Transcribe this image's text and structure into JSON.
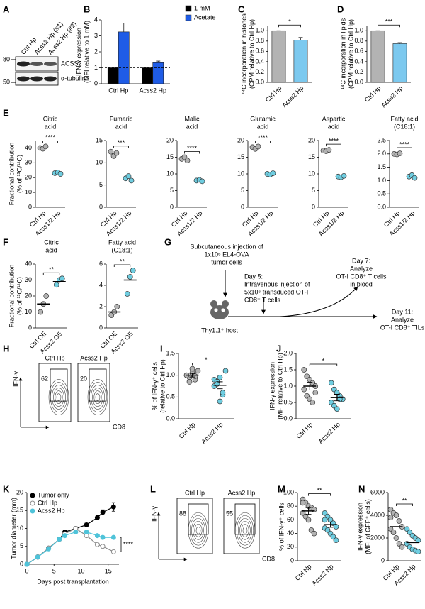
{
  "figure": {
    "A": {
      "panel": "A",
      "lanes": [
        "Ctrl Hp",
        "Acss2 Hp (#1)",
        "Acss2 Hp (#2)"
      ],
      "markers": [
        "80",
        "50"
      ],
      "bands": [
        "ACSS2",
        "α-tubulin"
      ]
    },
    "G": {
      "panel": "G",
      "injection": [
        "Subcutaneous injection of",
        "1x10⁶ EL4-OVA",
        "tumor cells"
      ],
      "day5": [
        "Day 5:",
        "Intravenous injection of",
        "5x10⁶ transduced OT-I",
        "CD8⁺ T cells"
      ],
      "day7": [
        "Day 7:",
        "Analyze",
        "OT-I CD8⁺ T cells",
        "in blood"
      ],
      "day11": [
        "Day 11:",
        "Analyze",
        "OT-I CD8⁺ TILs"
      ],
      "host": "Thy1.1⁺ host"
    },
    "H": {
      "panel": "H",
      "y_axis": "IFN-γ",
      "x_axis": "CD8",
      "plots": [
        {
          "title": "Ctrl Hp",
          "gate": 62
        },
        {
          "title": "Acss2 Hp",
          "gate": 20
        }
      ]
    },
    "L": {
      "panel": "L",
      "y_axis": "IFN-γ",
      "x_axis": "CD8",
      "plots": [
        {
          "title": "Ctrl Hp",
          "gate": 88
        },
        {
          "title": "Acss2 Hp",
          "gate": 55
        }
      ]
    }
  },
  "chart_data": [
    {
      "panel": "B",
      "type": "bar",
      "ylabel": [
        "IFN-γ expression",
        "(MFI relative to 1 mM)"
      ],
      "categories": [
        "Ctrl Hp",
        "Acss2 Hp"
      ],
      "series": [
        {
          "name": "1 mM",
          "color": "#000000",
          "values": [
            1,
            1
          ]
        },
        {
          "name": "Acetate",
          "color": "#1f5ce6",
          "values": [
            3.25,
            1.32
          ],
          "errors": [
            0.55,
            0.1
          ]
        }
      ],
      "ylim": [
        0,
        4
      ],
      "yticks": [
        0,
        1,
        2,
        3,
        4
      ],
      "reference_line": 1,
      "legend": "top-right"
    },
    {
      "panel": "C",
      "type": "bar",
      "ylabel": [
        "¹⁴C incorporation in histones",
        "(CPM relative to Ctrl Hp)"
      ],
      "categories": [
        "Ctrl Hp",
        "Acss2 Hp"
      ],
      "values": [
        1,
        0.82
      ],
      "errors": [
        0,
        0.05
      ],
      "colors": [
        "#b3b3b3",
        "#7cc9ef"
      ],
      "ylim": [
        0,
        1.1
      ],
      "yticks": [
        {
          "value": 0,
          "label": "0.0"
        },
        0.2,
        0.4,
        0.6,
        0.8,
        {
          "value": 1,
          "label": "1.0"
        }
      ],
      "significance": "*"
    },
    {
      "panel": "D",
      "type": "bar",
      "ylabel": [
        "¹⁴C incorporation in lipids",
        "(CPM relative to Ctrl Hp)"
      ],
      "categories": [
        "Ctrl Hp",
        "Acss2 Hp"
      ],
      "values": [
        1,
        0.75
      ],
      "errors": [
        0,
        0.02
      ],
      "colors": [
        "#b3b3b3",
        "#7cc9ef"
      ],
      "ylim": [
        0,
        1.1
      ],
      "yticks": [
        {
          "value": 0,
          "label": "0.0"
        },
        0.2,
        0.4,
        0.6,
        0.8,
        {
          "value": 1,
          "label": "1.0"
        }
      ],
      "significance": "***"
    },
    {
      "panel": "E",
      "type": "strip",
      "title": [
        "Citric",
        "acid"
      ],
      "ylabel": [
        "Fractional contribution",
        "(% of ¹³C/¹²C)"
      ],
      "categories": [
        "Ctrl Hp",
        "Acss1/2 Hp"
      ],
      "points": [
        [
          40,
          39.5,
          41
        ],
        [
          23,
          23.5,
          22.5
        ]
      ],
      "colors": [
        "#b3b3b3",
        "#6fcde0"
      ],
      "ylim": [
        0,
        45
      ],
      "yticks": [
        0,
        10,
        20,
        30,
        40
      ],
      "significance": "****"
    },
    {
      "type": "strip",
      "title": [
        "Fumaric",
        "acid"
      ],
      "categories": [
        "Ctrl Hp",
        "Acss1/2 Hp"
      ],
      "points": [
        [
          12.5,
          11.5,
          12.2
        ],
        [
          6.5,
          7,
          6
        ]
      ],
      "colors": [
        "#b3b3b3",
        "#6fcde0"
      ],
      "ylim": [
        0,
        15
      ],
      "yticks": [
        0,
        5,
        10,
        15
      ],
      "significance": "***"
    },
    {
      "type": "strip",
      "title": [
        "Malic",
        "acid"
      ],
      "categories": [
        "Ctrl Hp",
        "Acss1/2 Hp"
      ],
      "points": [
        [
          14.5,
          15,
          14
        ],
        [
          8,
          8.2,
          7.8
        ]
      ],
      "colors": [
        "#b3b3b3",
        "#6fcde0"
      ],
      "ylim": [
        0,
        20
      ],
      "yticks": [
        0,
        5,
        10,
        15,
        20
      ],
      "significance": "****"
    },
    {
      "type": "strip",
      "title": [
        "Glutamic",
        "acid"
      ],
      "categories": [
        "Ctrl Hp",
        "Acss1/2 Hp"
      ],
      "points": [
        [
          18,
          17.5,
          18.2
        ],
        [
          10,
          9.8,
          10.2
        ]
      ],
      "colors": [
        "#b3b3b3",
        "#6fcde0"
      ],
      "ylim": [
        0,
        20
      ],
      "yticks": [
        0,
        5,
        10,
        15,
        20
      ],
      "significance": "****"
    },
    {
      "type": "strip",
      "title": [
        "Aspartic",
        "acid"
      ],
      "categories": [
        "Ctrl Hp",
        "Acss1/2 Hp"
      ],
      "points": [
        [
          17,
          16.8,
          17.2
        ],
        [
          9.2,
          9,
          9.4
        ]
      ],
      "colors": [
        "#b3b3b3",
        "#6fcde0"
      ],
      "ylim": [
        0,
        20
      ],
      "yticks": [
        0,
        5,
        10,
        15,
        20
      ],
      "significance": "****"
    },
    {
      "type": "strip",
      "title": [
        "Fatty acid",
        "(C18:1)"
      ],
      "categories": [
        "Ctrl Hp",
        "Acss1/2 Hp"
      ],
      "points": [
        [
          2,
          1.98,
          2.02
        ],
        [
          1.15,
          1.2,
          1.1
        ]
      ],
      "colors": [
        "#b3b3b3",
        "#6fcde0"
      ],
      "ylim": [
        0,
        2.5
      ],
      "yticks": [
        {
          "value": 0,
          "label": "0.0"
        },
        0.5,
        {
          "value": 1,
          "label": "1.0"
        },
        1.5,
        {
          "value": 2,
          "label": "2.0"
        },
        2.5
      ],
      "significance": "****"
    },
    {
      "panel": "F",
      "type": "strip",
      "title": [
        "Citric",
        "acid"
      ],
      "ylabel": [
        "Fractional contribution",
        "(% of ¹³C/¹²C)"
      ],
      "categories": [
        "Ctrl OE",
        "Acss2 OE"
      ],
      "points": [
        [
          10,
          15,
          20
        ],
        [
          27,
          30,
          31
        ]
      ],
      "means": [
        15,
        29
      ],
      "colors": [
        "#b3b3b3",
        "#6fcde0"
      ],
      "ylim": [
        0,
        40
      ],
      "yticks": [
        0,
        10,
        20,
        30,
        40
      ],
      "significance": "**"
    },
    {
      "type": "strip",
      "title": [
        "Fatty acid",
        "(C18:1)"
      ],
      "categories": [
        "Ctrl OE",
        "Acss2 OE"
      ],
      "points": [
        [
          1.2,
          1.5,
          2
        ],
        [
          3.2,
          4.8,
          5.4
        ]
      ],
      "means": [
        1.5,
        4.5
      ],
      "colors": [
        "#b3b3b3",
        "#6fcde0"
      ],
      "ylim": [
        0,
        6
      ],
      "yticks": [
        0,
        2,
        4,
        6
      ],
      "significance": "**"
    },
    {
      "panel": "I",
      "type": "strip",
      "ylabel": [
        "% of IFN-γ⁺ cells",
        "(relative to Ctrl Hp)"
      ],
      "categories": [
        "Ctrl Hp",
        "Acss2 Hp"
      ],
      "points": [
        [
          1,
          0.95,
          1.05,
          0.9,
          1.1,
          1,
          0.85,
          1.15,
          0.98
        ],
        [
          0.9,
          0.85,
          0.4,
          0.55,
          1.1,
          0.75,
          0.8,
          0.95,
          0.6
        ]
      ],
      "means": [
        1,
        0.77
      ],
      "errors": [
        0.04,
        0.08
      ],
      "colors": [
        "#b3b3b3",
        "#6fcde0"
      ],
      "ylim": [
        0,
        1.5
      ],
      "yticks": [
        {
          "value": 0,
          "label": "0.0"
        },
        0.5,
        {
          "value": 1,
          "label": "1.0"
        },
        1.5
      ],
      "significance": "*"
    },
    {
      "panel": "J",
      "type": "strip",
      "ylabel": [
        "IFN-γ expression",
        "(MFI relative to Ctrl Hp)"
      ],
      "categories": [
        "Ctrl Hp",
        "Acss2 Hp"
      ],
      "points": [
        [
          1.5,
          1.3,
          1.2,
          1.1,
          1,
          0.9,
          0.7,
          0.6,
          0.5,
          0.8
        ],
        [
          1.1,
          0.9,
          0.8,
          0.7,
          0.6,
          0.5,
          0.4,
          0.3,
          0.6
        ]
      ],
      "means": [
        1,
        0.65
      ],
      "errors": [
        0.12,
        0.1
      ],
      "colors": [
        "#b3b3b3",
        "#6fcde0"
      ],
      "ylim": [
        0,
        2
      ],
      "yticks": [
        {
          "value": 0,
          "label": "0.0"
        },
        0.5,
        {
          "value": 1,
          "label": "1.0"
        },
        1.5,
        {
          "value": 2,
          "label": "2.0"
        }
      ],
      "significance": "*"
    },
    {
      "panel": "K",
      "type": "line",
      "xlabel": "Days post transplantation",
      "ylabel": "Tumor diameter (mm)",
      "x": [
        0,
        2,
        4,
        6,
        7,
        9,
        11,
        13,
        14,
        16
      ],
      "series": [
        {
          "name": "Tumor only",
          "color": "#000000",
          "values": [
            0,
            2,
            4.5,
            7,
            9,
            10,
            11,
            13,
            14.5,
            16
          ],
          "errors": [
            0,
            0.1,
            0.3,
            0.4,
            0.5,
            0.5,
            0.5,
            0.6,
            0.7,
            1.2
          ]
        },
        {
          "name": "Ctrl Hp",
          "color": "#8c8c8c",
          "fill": "#ffffff",
          "values": [
            0,
            2.1,
            4.5,
            7,
            8.5,
            10,
            8,
            5.5,
            5,
            3.5
          ]
        },
        {
          "name": "Acss2 Hp",
          "color": "#4fc3d9",
          "values": [
            0,
            2,
            4.3,
            7,
            8,
            9,
            9,
            8,
            7.5,
            7.5
          ]
        }
      ],
      "xlim": [
        0,
        17
      ],
      "xticks": [
        0,
        5,
        10,
        15
      ],
      "ylim": [
        0,
        20
      ],
      "yticks": [
        0,
        5,
        10,
        15,
        20
      ],
      "legend": "top-left",
      "significance": "****"
    },
    {
      "panel": "M",
      "type": "strip",
      "ylabel": "% of IFN-γ⁺ cells",
      "categories": [
        "Ctrl Hp",
        "Acss2 Hp"
      ],
      "points": [
        [
          90,
          85,
          80,
          78,
          75,
          70,
          65,
          60,
          45,
          40,
          85
        ],
        [
          70,
          65,
          60,
          55,
          50,
          48,
          45,
          40,
          35,
          30,
          60
        ]
      ],
      "means": [
        73,
        53
      ],
      "errors": [
        5,
        4
      ],
      "colors": [
        "#b3b3b3",
        "#6fcde0"
      ],
      "ylim": [
        0,
        100
      ],
      "yticks": [
        0,
        20,
        40,
        60,
        80,
        100
      ],
      "significance": "**"
    },
    {
      "panel": "N",
      "type": "strip",
      "ylabel": [
        "IFN-γ expression",
        "(MFI of GFP⁺ cells)"
      ],
      "categories": [
        "Ctrl Hp",
        "Acss2 Hp"
      ],
      "points": [
        [
          4500,
          4200,
          4000,
          3500,
          3000,
          2800,
          2500,
          2000,
          1500,
          1200,
          3800
        ],
        [
          2800,
          2500,
          2200,
          2000,
          1800,
          1500,
          1200,
          1000,
          900,
          800
        ]
      ],
      "means": [
        3000,
        1600
      ],
      "colors": [
        "#b3b3b3",
        "#6fcde0"
      ],
      "ylim": [
        0,
        6000
      ],
      "yticks": [
        0,
        2000,
        4000,
        6000
      ],
      "significance": "**"
    }
  ]
}
